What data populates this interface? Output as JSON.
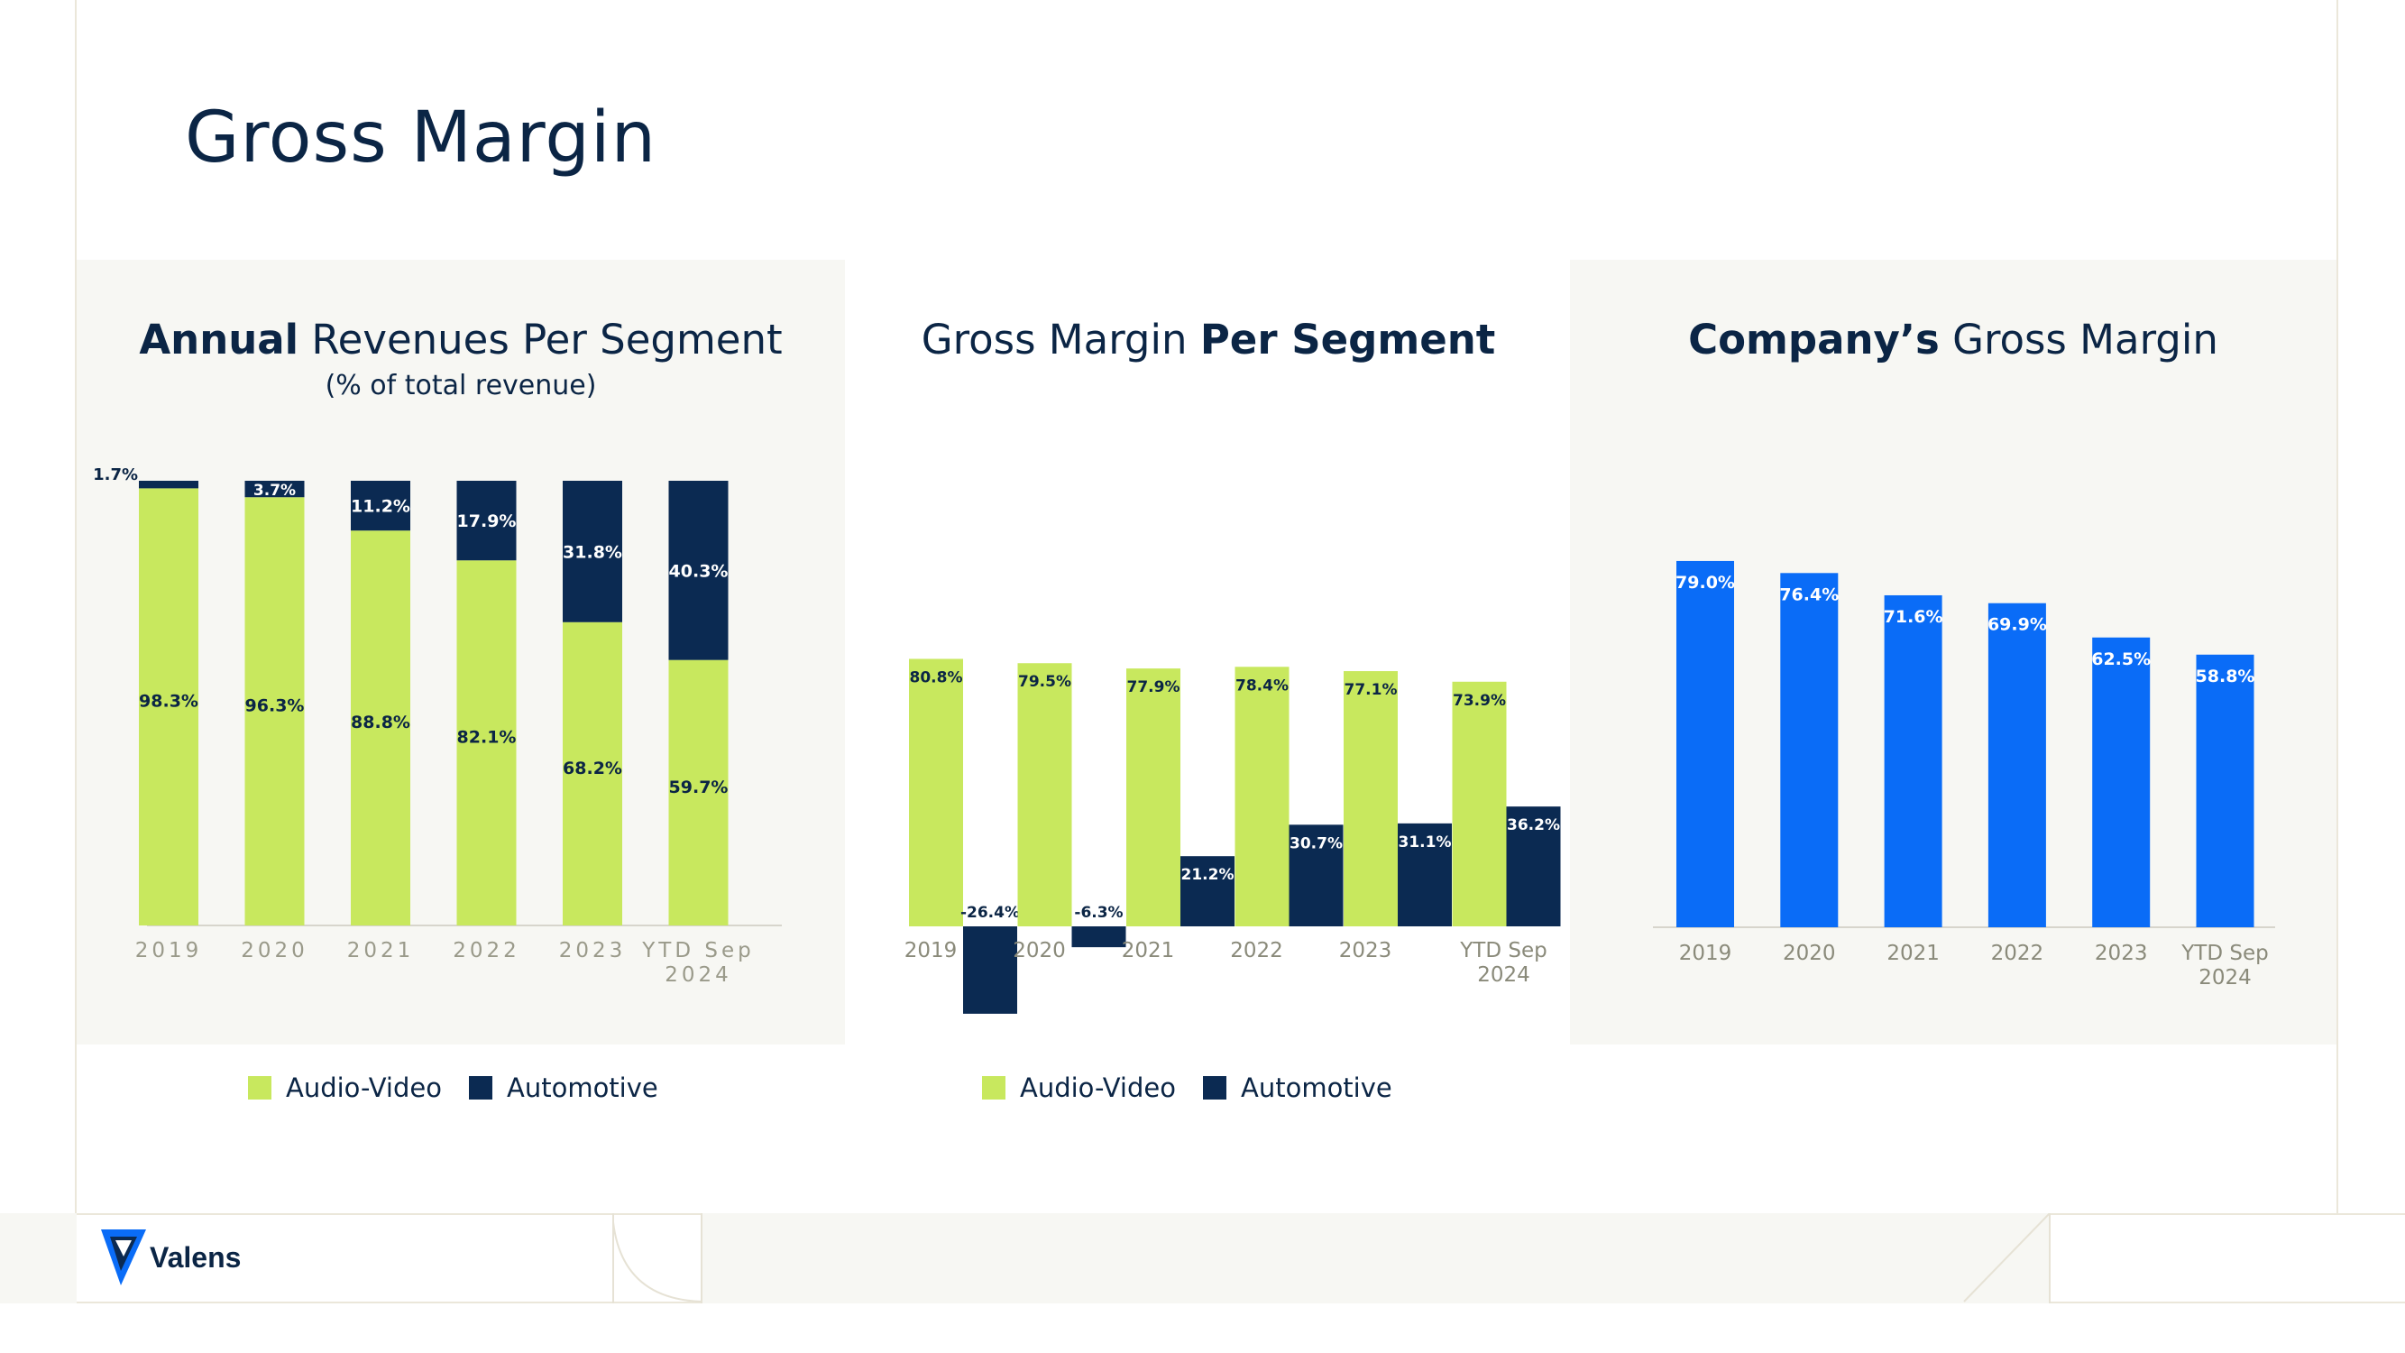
{
  "title": "Gross Margin",
  "colors": {
    "audio_video": "#c8e85e",
    "automotive": "#0b2a52",
    "company": "#0a6cf7",
    "panel_bg": "#f7f7f3",
    "axis_text": "#9a9a8a",
    "title_text": "#0b2545"
  },
  "panels": {
    "revenue": {
      "title_bold": "Annual",
      "title_rest": " Revenues Per Segment",
      "subtitle": "(% of total revenue)"
    },
    "segment": {
      "title_plain": "Gross Margin ",
      "title_bold": "Per Segment"
    },
    "company": {
      "title_bold": "Company’s",
      "title_rest": " Gross Margin"
    }
  },
  "legend": {
    "audio_video": "Audio-Video",
    "automotive": "Automotive"
  },
  "logo": {
    "text": "Valens"
  },
  "chart_data": [
    {
      "type": "bar",
      "stacked": true,
      "title": "Annual Revenues Per Segment",
      "subtitle": "(% of total revenue)",
      "categories": [
        "2019",
        "2020",
        "2021",
        "2022",
        "2023",
        "YTD Sep 2024"
      ],
      "series": [
        {
          "name": "Audio-Video",
          "values": [
            98.3,
            96.3,
            88.8,
            82.1,
            68.2,
            59.7
          ],
          "labels": [
            "98.3%",
            "96.3%",
            "88.8%",
            "82.1%",
            "68.2%",
            "59.7%"
          ]
        },
        {
          "name": "Automotive",
          "values": [
            1.7,
            3.7,
            11.2,
            17.9,
            31.8,
            40.3
          ],
          "labels": [
            "1.7%",
            "3.7%",
            "11.2%",
            "17.9%",
            "31.8%",
            "40.3%"
          ]
        }
      ],
      "ylim": [
        0,
        100
      ],
      "legend": "bottom"
    },
    {
      "type": "bar",
      "stacked": false,
      "title": "Gross Margin Per Segment",
      "categories": [
        "2019",
        "2020",
        "2021",
        "2022",
        "2023",
        "YTD Sep 2024"
      ],
      "series": [
        {
          "name": "Audio-Video",
          "values": [
            80.8,
            79.5,
            77.9,
            78.4,
            77.1,
            73.9
          ],
          "labels": [
            "80.8%",
            "79.5%",
            "77.9%",
            "78.4%",
            "77.1%",
            "73.9%"
          ]
        },
        {
          "name": "Automotive",
          "values": [
            -26.4,
            -6.3,
            21.2,
            30.7,
            31.1,
            36.2
          ],
          "labels": [
            "-26.4%",
            "-6.3%",
            "21.2%",
            "30.7%",
            "31.1%",
            "36.2%"
          ]
        }
      ],
      "ylim": [
        -30,
        85
      ],
      "legend": "bottom"
    },
    {
      "type": "bar",
      "title": "Company’s Gross Margin",
      "categories": [
        "2019",
        "2020",
        "2021",
        "2022",
        "2023",
        "YTD Sep 2024"
      ],
      "values": [
        79.0,
        76.4,
        71.6,
        69.9,
        62.5,
        58.8
      ],
      "labels": [
        "79.0%",
        "76.4%",
        "71.6%",
        "69.9%",
        "62.5%",
        "58.8%"
      ],
      "ylim": [
        0,
        100
      ]
    }
  ]
}
